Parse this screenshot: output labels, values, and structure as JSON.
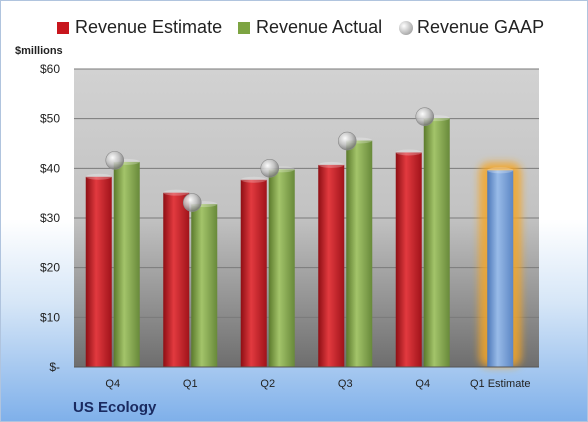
{
  "legend": [
    {
      "label": "Revenue Estimate",
      "color": "#c8161d",
      "marker": "square"
    },
    {
      "label": "Revenue Actual",
      "color": "#7da442",
      "marker": "square"
    },
    {
      "label": "Revenue GAAP",
      "color": "#b0b0b0",
      "marker": "sphere"
    }
  ],
  "unit_label": "$millions",
  "brand": "US Ecology",
  "chart_data": {
    "type": "bar",
    "categories": [
      "Q4",
      "Q1",
      "Q2",
      "Q3",
      "Q4",
      "Q1 Estimate"
    ],
    "y_tick_labels": [
      "$-",
      "$10",
      "$20",
      "$30",
      "$40",
      "$50",
      "$60"
    ],
    "ylim": [
      0,
      60
    ],
    "grid": true,
    "legend_position": "top",
    "series": [
      {
        "name": "Revenue Estimate",
        "color": "#c8161d",
        "values": [
          38.3,
          35.1,
          37.7,
          40.7,
          43.2,
          null
        ]
      },
      {
        "name": "Revenue Actual",
        "color": "#7da442",
        "values": [
          41.3,
          32.8,
          39.8,
          45.6,
          50.1,
          null
        ]
      },
      {
        "name": "Revenue GAAP",
        "color": "#b0b0b0",
        "marker": "sphere",
        "values": [
          41.6,
          33.1,
          40.0,
          45.5,
          50.4,
          null
        ]
      },
      {
        "name": "Q1 Estimate",
        "color": "#6f9ad8",
        "highlight": "#f5a623",
        "values": [
          null,
          null,
          null,
          null,
          null,
          39.6
        ]
      }
    ]
  }
}
